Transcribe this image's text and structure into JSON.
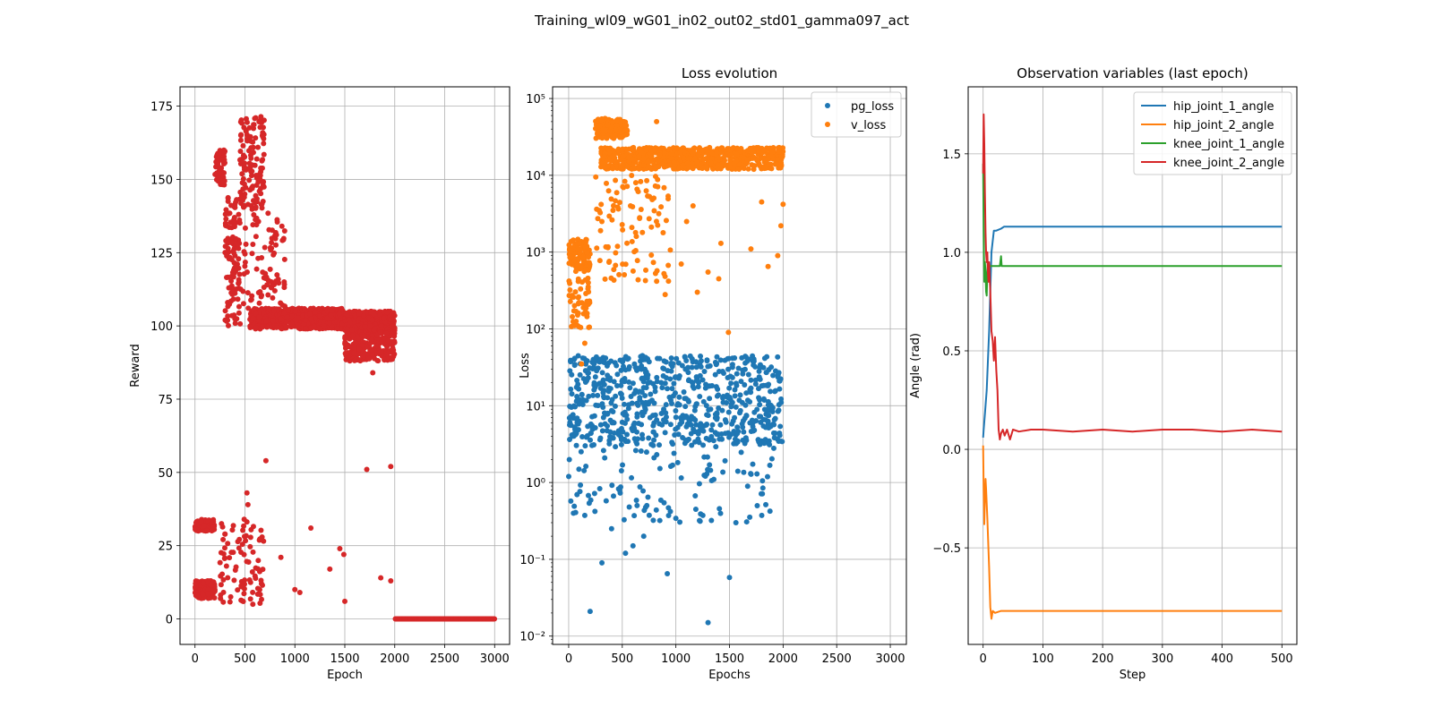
{
  "figure_title": "Training_wl09_wG01_in02_out02_std01_gamma097_act",
  "chart_data": [
    {
      "type": "scatter",
      "title": "",
      "xlabel": "Epoch",
      "ylabel": "Reward",
      "ylabel_color": "#d62728",
      "xlim": [
        -150,
        3150
      ],
      "ylim": [
        -8.7,
        181.6
      ],
      "xticks": [
        0,
        500,
        1000,
        1500,
        2000,
        2500,
        3000
      ],
      "xtick_labels": [
        "0",
        "500",
        "1000",
        "1500",
        "2000",
        "2500",
        "3000"
      ],
      "yticks": [
        0,
        25,
        50,
        75,
        100,
        125,
        150,
        175
      ],
      "ytick_labels": [
        "0",
        "25",
        "50",
        "75",
        "100",
        "125",
        "150",
        "175"
      ],
      "grid": true,
      "color": "#d62728",
      "clusters": [
        {
          "x": [
            0,
            200
          ],
          "y": [
            7,
            13
          ],
          "n": 180
        },
        {
          "x": [
            0,
            200
          ],
          "y": [
            30,
            34
          ],
          "n": 80
        },
        {
          "x": [
            200,
            300
          ],
          "y": [
            148,
            160
          ],
          "n": 60
        },
        {
          "x": [
            250,
            700
          ],
          "y": [
            5,
            35
          ],
          "n": 90
        },
        {
          "x": [
            300,
            450
          ],
          "y": [
            100,
            145
          ],
          "n": 110
        },
        {
          "x": [
            450,
            700
          ],
          "y": [
            140,
            172
          ],
          "n": 130
        },
        {
          "x": [
            450,
            900
          ],
          "y": [
            100,
            140
          ],
          "n": 100
        },
        {
          "x": [
            550,
            1500
          ],
          "y": [
            99,
            106
          ],
          "n": 700
        },
        {
          "x": [
            1500,
            2000
          ],
          "y": [
            97,
            105
          ],
          "n": 450
        },
        {
          "x": [
            1500,
            2000
          ],
          "y": [
            88,
            100
          ],
          "n": 260
        },
        {
          "x": [
            2000,
            3000
          ],
          "y": [
            0,
            0
          ],
          "n": 400
        }
      ],
      "points": [
        {
          "x": 710,
          "y": 54
        },
        {
          "x": 1160,
          "y": 31
        },
        {
          "x": 1720,
          "y": 51
        },
        {
          "x": 1960,
          "y": 52
        },
        {
          "x": 1050,
          "y": 9
        },
        {
          "x": 1350,
          "y": 17
        },
        {
          "x": 1450,
          "y": 24
        },
        {
          "x": 1500,
          "y": 6
        },
        {
          "x": 1860,
          "y": 14
        },
        {
          "x": 1960,
          "y": 13
        },
        {
          "x": 1780,
          "y": 84
        },
        {
          "x": 860,
          "y": 21
        },
        {
          "x": 520,
          "y": 43
        },
        {
          "x": 530,
          "y": 39
        },
        {
          "x": 1000,
          "y": 10
        },
        {
          "x": 1490,
          "y": 22
        }
      ]
    },
    {
      "type": "scatter",
      "title": "Loss evolution",
      "xlabel": "Epochs",
      "ylabel": "Loss",
      "xlim": [
        -150,
        3150
      ],
      "yscale": "log",
      "ylim": [
        0.0078,
        142000
      ],
      "xticks": [
        0,
        500,
        1000,
        1500,
        2000,
        2500,
        3000
      ],
      "xtick_labels": [
        "0",
        "500",
        "1000",
        "1500",
        "2000",
        "2500",
        "3000"
      ],
      "yticks": [
        0.01,
        0.1,
        1,
        10,
        100,
        1000,
        10000,
        100000
      ],
      "ytick_labels": [
        "10⁻²",
        "10⁻¹",
        "10⁰",
        "10¹",
        "10²",
        "10³",
        "10⁴",
        "10⁵"
      ],
      "grid": true,
      "legend_position": "top-right",
      "series": [
        {
          "name": "pg_loss",
          "color": "#1f77b4",
          "clusters": [
            {
              "x": [
                0,
                2000
              ],
              "y": [
                3,
                45
              ],
              "n": 700
            },
            {
              "x": [
                0,
                2000
              ],
              "y": [
                0.3,
                3
              ],
              "n": 110
            }
          ],
          "points": [
            {
              "x": 200,
              "y": 0.021
            },
            {
              "x": 1300,
              "y": 0.015
            },
            {
              "x": 920,
              "y": 0.065
            },
            {
              "x": 1500,
              "y": 0.058
            },
            {
              "x": 310,
              "y": 0.09
            },
            {
              "x": 530,
              "y": 0.12
            },
            {
              "x": 600,
              "y": 0.15
            },
            {
              "x": 400,
              "y": 0.25
            },
            {
              "x": 700,
              "y": 0.2
            },
            {
              "x": 1220,
              "y": 0.32
            },
            {
              "x": 1560,
              "y": 0.3
            }
          ]
        },
        {
          "name": "v_loss",
          "color": "#ff7f0e",
          "clusters": [
            {
              "x": [
                0,
                200
              ],
              "y": [
                600,
                1500
              ],
              "n": 120
            },
            {
              "x": [
                0,
                200
              ],
              "y": [
                100,
                600
              ],
              "n": 60
            },
            {
              "x": [
                250,
                550
              ],
              "y": [
                30000,
                55000
              ],
              "n": 140
            },
            {
              "x": [
                300,
                2000
              ],
              "y": [
                12000,
                23000
              ],
              "n": 700
            },
            {
              "x": [
                250,
                950
              ],
              "y": [
                400,
                10000
              ],
              "n": 100
            }
          ],
          "points": [
            {
              "x": 1100,
              "y": 2500
            },
            {
              "x": 1050,
              "y": 700
            },
            {
              "x": 1400,
              "y": 450
            },
            {
              "x": 1200,
              "y": 300
            },
            {
              "x": 900,
              "y": 280
            },
            {
              "x": 1490,
              "y": 90
            },
            {
              "x": 1800,
              "y": 4500
            },
            {
              "x": 1980,
              "y": 2200
            },
            {
              "x": 1300,
              "y": 550
            },
            {
              "x": 2000,
              "y": 4200
            },
            {
              "x": 1950,
              "y": 900
            },
            {
              "x": 120,
              "y": 35
            },
            {
              "x": 150,
              "y": 65
            },
            {
              "x": 1160,
              "y": 4000
            },
            {
              "x": 1420,
              "y": 1300
            },
            {
              "x": 1700,
              "y": 1100
            },
            {
              "x": 1860,
              "y": 650
            },
            {
              "x": 820,
              "y": 50000
            }
          ]
        }
      ]
    },
    {
      "type": "line",
      "title": "Observation variables (last epoch)",
      "xlabel": "Step",
      "ylabel": "Angle (rad)",
      "xlim": [
        -25,
        525
      ],
      "ylim": [
        -0.99,
        1.84
      ],
      "xticks": [
        0,
        100,
        200,
        300,
        400,
        500
      ],
      "xtick_labels": [
        "0",
        "100",
        "200",
        "300",
        "400",
        "500"
      ],
      "yticks": [
        -0.5,
        0.0,
        0.5,
        1.0,
        1.5
      ],
      "ytick_labels": [
        "−0.5",
        "0.0",
        "0.5",
        "1.0",
        "1.5"
      ],
      "grid": true,
      "legend_position": "top-right",
      "series": [
        {
          "name": "hip_joint_1_angle",
          "color": "#1f77b4",
          "x": [
            0,
            1,
            3,
            6,
            10,
            14,
            18,
            22,
            30,
            35,
            100,
            200,
            300,
            400,
            500
          ],
          "y": [
            0.06,
            0.1,
            0.18,
            0.3,
            0.6,
            1.0,
            1.11,
            1.11,
            1.12,
            1.13,
            1.13,
            1.13,
            1.13,
            1.13,
            1.13
          ]
        },
        {
          "name": "hip_joint_2_angle",
          "color": "#ff7f0e",
          "x": [
            0,
            1,
            2,
            3,
            4,
            5,
            7,
            10,
            12,
            14,
            16,
            20,
            30,
            100,
            200,
            300,
            400,
            500
          ],
          "y": [
            0.02,
            -0.2,
            -0.38,
            -0.25,
            -0.15,
            -0.2,
            -0.35,
            -0.6,
            -0.8,
            -0.86,
            -0.82,
            -0.83,
            -0.82,
            -0.82,
            -0.82,
            -0.82,
            -0.82,
            -0.82
          ]
        },
        {
          "name": "knee_joint_1_angle",
          "color": "#2ca02c",
          "x": [
            0,
            1,
            2,
            3,
            4,
            5,
            6,
            7,
            8,
            10,
            12,
            15,
            20,
            25,
            28,
            30,
            31,
            35,
            100,
            200,
            300,
            400,
            500
          ],
          "y": [
            1.45,
            1.1,
            0.85,
            0.95,
            0.9,
            0.8,
            0.78,
            0.9,
            0.95,
            0.93,
            0.93,
            0.93,
            0.93,
            0.93,
            0.93,
            0.98,
            0.93,
            0.93,
            0.93,
            0.93,
            0.93,
            0.93,
            0.93
          ]
        },
        {
          "name": "knee_joint_2_angle",
          "color": "#d62728",
          "x": [
            0,
            1,
            2,
            3,
            4,
            5,
            6,
            7,
            8,
            9,
            10,
            12,
            14,
            16,
            18,
            20,
            22,
            24,
            26,
            28,
            30,
            33,
            36,
            40,
            45,
            50,
            60,
            80,
            100,
            150,
            200,
            250,
            300,
            350,
            400,
            450,
            500
          ],
          "y": [
            1.4,
            1.7,
            1.55,
            1.3,
            1.1,
            1.0,
            0.95,
            1.0,
            0.9,
            0.85,
            0.95,
            0.8,
            0.6,
            0.55,
            0.45,
            0.57,
            0.4,
            0.3,
            0.1,
            0.05,
            0.08,
            0.1,
            0.07,
            0.1,
            0.05,
            0.1,
            0.09,
            0.1,
            0.1,
            0.09,
            0.1,
            0.09,
            0.1,
            0.1,
            0.09,
            0.1,
            0.09
          ]
        }
      ]
    }
  ]
}
